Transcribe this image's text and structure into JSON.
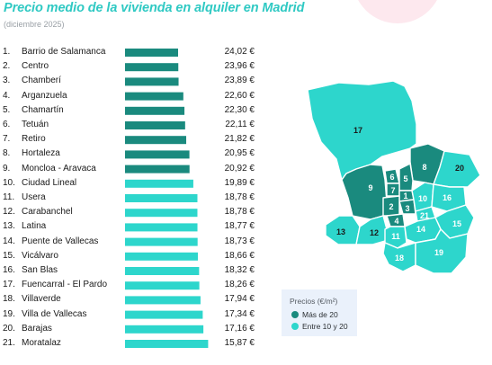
{
  "header": {
    "title": "Precio medio de la vivienda en alquiler en Madrid",
    "subtitle": "(diciembre 2025)"
  },
  "colors": {
    "high": "#1a8a7e",
    "mid": "#2dd6cc",
    "title": "#2fc9c3",
    "legend_bg": "#eaf1fb"
  },
  "chart_data": {
    "type": "bar",
    "orientation": "horizontal",
    "unit": "€",
    "ranks": [
      "1.",
      "2.",
      "3.",
      "4.",
      "5.",
      "6.",
      "7.",
      "8.",
      "9.",
      "10.",
      "11.",
      "12.",
      "13.",
      "14.",
      "15.",
      "16.",
      "17.",
      "18.",
      "19.",
      "20.",
      "21."
    ],
    "categories": [
      "Barrio de Salamanca",
      "Centro",
      "Chamberí",
      "Arganzuela",
      "Chamartín",
      "Tetuán",
      "Retiro",
      "Hortaleza",
      "Moncloa - Aravaca",
      "Ciudad Lineal",
      "Usera",
      "Carabanchel",
      "Latina",
      "Puente de Vallecas",
      "Vicálvaro",
      "San Blas",
      "Fuencarral - El Pardo",
      "Villaverde",
      "Villa de Vallecas",
      "Barajas",
      "Moratalaz"
    ],
    "values": [
      24.02,
      23.96,
      23.89,
      22.6,
      22.3,
      22.11,
      21.82,
      20.95,
      20.92,
      19.89,
      18.78,
      18.78,
      18.77,
      18.73,
      18.66,
      18.32,
      18.26,
      17.94,
      17.34,
      17.16,
      15.87
    ],
    "value_labels": [
      "24,02 €",
      "23,96 €",
      "23,89 €",
      "22,60 €",
      "22,30 €",
      "22,11 €",
      "21,82 €",
      "20,95 €",
      "20,92 €",
      "19,89 €",
      "18,78 €",
      "18,78 €",
      "18,77 €",
      "18,73 €",
      "18,66 €",
      "18,32 €",
      "18,26 €",
      "17,94 €",
      "17,34 €",
      "17,16 €",
      "15,87 €"
    ],
    "category_group": [
      "high",
      "high",
      "high",
      "high",
      "high",
      "high",
      "high",
      "high",
      "high",
      "mid",
      "mid",
      "mid",
      "mid",
      "mid",
      "mid",
      "mid",
      "mid",
      "mid",
      "mid",
      "mid",
      "mid"
    ]
  },
  "map": {
    "district_labels": [
      "17",
      "8",
      "20",
      "9",
      "6",
      "5",
      "7",
      "1",
      "3",
      "2",
      "4",
      "10",
      "16",
      "21",
      "15",
      "13",
      "12",
      "11",
      "14",
      "18",
      "19"
    ]
  },
  "legend": {
    "title": "Precios (€/m²)",
    "items": [
      {
        "label": "Más de 20",
        "color": "#1a8a7e"
      },
      {
        "label": "Entre 10 y 20",
        "color": "#2dd6cc"
      }
    ]
  }
}
